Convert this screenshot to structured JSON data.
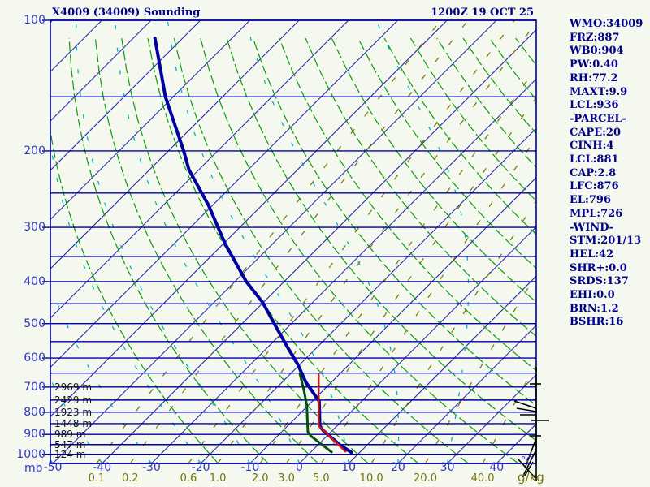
{
  "window": {
    "title": "X4009 (34009) Sounding",
    "datetime": "1200Z 19 OCT 25"
  },
  "stats": {
    "lines": [
      "WMO:34009",
      "FRZ:887",
      "WB0:904",
      "PW:0.40",
      "RH:77.2",
      "MAXT:9.9",
      "LCL:936",
      "-PARCEL-",
      "CAPE:20",
      "CINH:4",
      "LCL:881",
      "CAP:2.8",
      "LFC:876",
      "EL:796",
      "MPL:726",
      "-WIND-",
      "STM:201/13",
      "HEL:42",
      "SHR+:0.0",
      "SRDS:137",
      "EHI:0.0",
      "BRN:1.2",
      "BSHR:16"
    ]
  },
  "chart_data": {
    "type": "line",
    "variant": "skew-t-log-p-sounding",
    "title": "X4009 (34009) Sounding",
    "datetime": "1200Z 19 OCT 25",
    "axes": {
      "pressure": {
        "unit": "mb",
        "scale": "log",
        "range": [
          100,
          1050
        ],
        "ticks": [
          100,
          200,
          300,
          400,
          500,
          600,
          700,
          800,
          900,
          1000
        ],
        "isobar_step": 50
      },
      "temperature": {
        "unit": "°C",
        "ticks": [
          -50,
          -40,
          -30,
          -20,
          -10,
          0,
          10,
          20,
          30,
          40
        ],
        "isotherm_step": 10,
        "isotherm_range": [
          -140,
          40
        ]
      },
      "mixing_ratio": {
        "unit": "g/kg",
        "ticks": [
          0.1,
          0.2,
          0.6,
          1.0,
          2.0,
          3.0,
          5.0,
          10.0,
          20.0,
          40.0
        ]
      }
    },
    "heights": {
      "pressures": [
        700,
        750,
        800,
        850,
        900,
        950,
        1000
      ],
      "labels": [
        "2969 m",
        "2429 m",
        "1923 m",
        "1448 m",
        "989 m",
        "547 m",
        "124 m"
      ]
    },
    "series": [
      {
        "name": "temperature",
        "color": "#0000a0",
        "width": 4,
        "points": [
          [
            990,
            8.3
          ],
          [
            950,
            4.3
          ],
          [
            880,
            -2.0
          ],
          [
            860,
            -3.5
          ],
          [
            755,
            -8.6
          ],
          [
            682,
            -15.2
          ],
          [
            620,
            -20.5
          ],
          [
            563,
            -26.4
          ],
          [
            505,
            -32.9
          ],
          [
            447,
            -40.1
          ],
          [
            400,
            -47.7
          ],
          [
            327,
            -59.7
          ],
          [
            267,
            -70.8
          ],
          [
            221,
            -82.0
          ],
          [
            200,
            -86.9
          ],
          [
            150,
            -101.6
          ],
          [
            110,
            -115.6
          ]
        ]
      },
      {
        "name": "dewpoint",
        "color": "#06500d",
        "width": 3,
        "points": [
          [
            988,
            4.2
          ],
          [
            908,
            -3.2
          ],
          [
            888,
            -4.7
          ],
          [
            771,
            -10.3
          ],
          [
            708,
            -14.2
          ],
          [
            651,
            -18.2
          ]
        ]
      },
      {
        "name": "parcel",
        "color": "#cf1212",
        "width": 2.4,
        "points": [
          [
            985,
            6.9
          ],
          [
            860,
            -3.7
          ],
          [
            654,
            -14.2
          ]
        ]
      }
    ],
    "grid": {
      "dry_adiabat_theta_range": [
        -20,
        180
      ],
      "dry_adiabat_step": 10,
      "moist_adiabat_surface_temps": [
        -60,
        -50,
        -40,
        -30,
        -20,
        -10,
        0,
        10,
        20,
        30
      ],
      "colors": {
        "isobar": "#0000a0",
        "isotherm": "#2a2aae",
        "dry_adiabat": "#0c9b0c",
        "moist_adiabat": "#00b2c4",
        "mixing_ratio": "#7c7c10",
        "border": "#0000a0",
        "wind_barb": "#000000"
      }
    },
    "wind_barbs": {
      "segments": [
        [
          660,
          452,
          660,
          592
        ],
        [
          660,
          503,
          633,
          494
        ],
        [
          660,
          507,
          636,
          503
        ],
        [
          659,
          511,
          640,
          511
        ],
        [
          652,
          473,
          666,
          473
        ],
        [
          654,
          518,
          676,
          518
        ],
        [
          652,
          537,
          666,
          537
        ],
        [
          660,
          540,
          646,
          577
        ],
        [
          660,
          554,
          643,
          588
        ],
        [
          638,
          566,
          659,
          589
        ],
        [
          656,
          569,
          646,
          586
        ]
      ]
    }
  }
}
